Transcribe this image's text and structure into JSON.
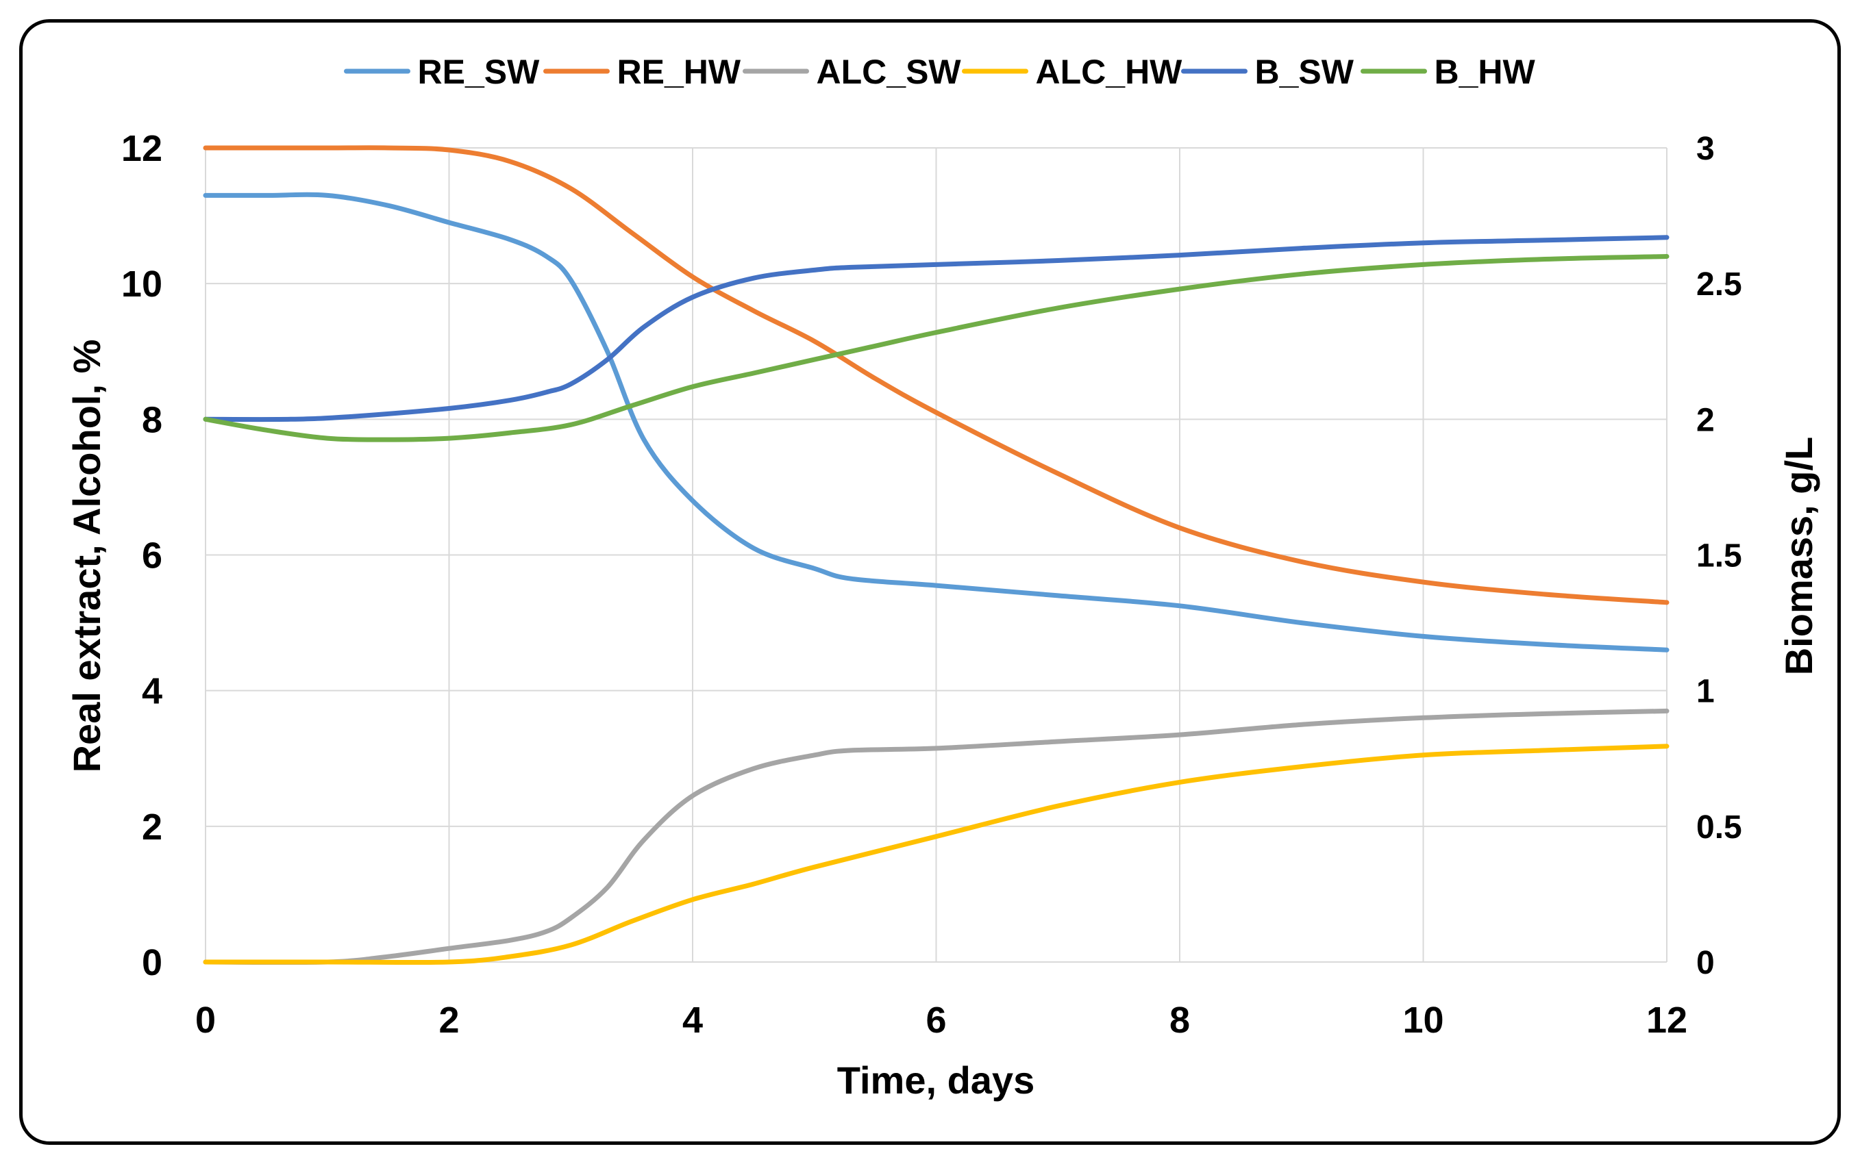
{
  "chart_data": {
    "type": "line",
    "title": "",
    "xlabel": "Time, days",
    "ylabel": "Real extract, Alcohol, %",
    "y2label": "Biomass, g/L",
    "xlim": [
      0,
      12
    ],
    "ylim": [
      0,
      12
    ],
    "y2lim": [
      0,
      3
    ],
    "xticks": [
      "0",
      "2",
      "4",
      "6",
      "8",
      "10",
      "12"
    ],
    "yticks": [
      "0",
      "2",
      "4",
      "6",
      "8",
      "10",
      "12"
    ],
    "y2ticks": [
      "0",
      "0.5",
      "1",
      "1.5",
      "2",
      "2.5",
      "3"
    ],
    "grid": true,
    "legend_position": "top",
    "series": [
      {
        "name": "RE_SW",
        "axis": "left",
        "color": "#5B9BD5",
        "x": [
          0,
          0.5,
          1,
          1.5,
          2,
          2.5,
          2.8,
          3,
          3.3,
          3.6,
          4,
          4.5,
          5,
          5.3,
          6,
          7,
          8,
          9,
          10,
          11,
          12
        ],
        "y": [
          11.3,
          11.3,
          11.3,
          11.15,
          10.9,
          10.65,
          10.4,
          10.05,
          9.0,
          7.7,
          6.8,
          6.1,
          5.8,
          5.65,
          5.55,
          5.4,
          5.25,
          5.0,
          4.8,
          4.68,
          4.6
        ]
      },
      {
        "name": "RE_HW",
        "axis": "left",
        "color": "#ED7D31",
        "x": [
          0,
          1,
          1.5,
          2,
          2.5,
          3,
          3.5,
          4,
          4.5,
          5,
          5.5,
          6,
          7,
          8,
          9,
          10,
          11,
          12
        ],
        "y": [
          12.0,
          12.0,
          12.0,
          11.97,
          11.8,
          11.4,
          10.75,
          10.1,
          9.6,
          9.15,
          8.6,
          8.1,
          7.2,
          6.4,
          5.9,
          5.6,
          5.42,
          5.3
        ]
      },
      {
        "name": "ALC_SW",
        "axis": "left",
        "color": "#A5A5A5",
        "x": [
          0,
          1,
          1.5,
          2,
          2.5,
          2.8,
          3,
          3.3,
          3.6,
          4,
          4.5,
          5,
          5.3,
          6,
          7,
          8,
          9,
          10,
          11,
          12
        ],
        "y": [
          0,
          0,
          0.08,
          0.2,
          0.32,
          0.45,
          0.65,
          1.1,
          1.8,
          2.45,
          2.85,
          3.05,
          3.12,
          3.15,
          3.25,
          3.35,
          3.5,
          3.6,
          3.66,
          3.7
        ]
      },
      {
        "name": "ALC_HW",
        "axis": "left",
        "color": "#FFC000",
        "x": [
          0,
          1,
          2,
          2.5,
          3,
          3.5,
          4,
          4.5,
          5,
          6,
          7,
          8,
          9,
          10,
          11,
          12
        ],
        "y": [
          0,
          0,
          0,
          0.08,
          0.25,
          0.6,
          0.92,
          1.15,
          1.4,
          1.85,
          2.3,
          2.65,
          2.88,
          3.05,
          3.12,
          3.18
        ]
      },
      {
        "name": "B_SW",
        "axis": "right",
        "color": "#4472C4",
        "x": [
          0,
          0.7,
          1.2,
          2,
          2.5,
          2.8,
          3,
          3.3,
          3.6,
          4,
          4.5,
          5,
          5.3,
          6,
          7,
          8,
          9,
          10,
          11,
          12
        ],
        "y": [
          2.0,
          2.0,
          2.01,
          2.04,
          2.07,
          2.1,
          2.13,
          2.22,
          2.34,
          2.45,
          2.52,
          2.55,
          2.56,
          2.57,
          2.585,
          2.605,
          2.63,
          2.65,
          2.66,
          2.67
        ]
      },
      {
        "name": "B_HW",
        "axis": "right",
        "color": "#70AD47",
        "x": [
          0,
          0.5,
          1,
          1.5,
          2,
          2.5,
          3,
          3.5,
          4,
          4.5,
          5,
          5.5,
          6,
          7,
          8,
          9,
          10,
          11,
          12
        ],
        "y": [
          2.0,
          1.96,
          1.93,
          1.925,
          1.93,
          1.95,
          1.98,
          2.05,
          2.12,
          2.17,
          2.22,
          2.27,
          2.32,
          2.41,
          2.48,
          2.535,
          2.57,
          2.59,
          2.6
        ]
      }
    ]
  }
}
